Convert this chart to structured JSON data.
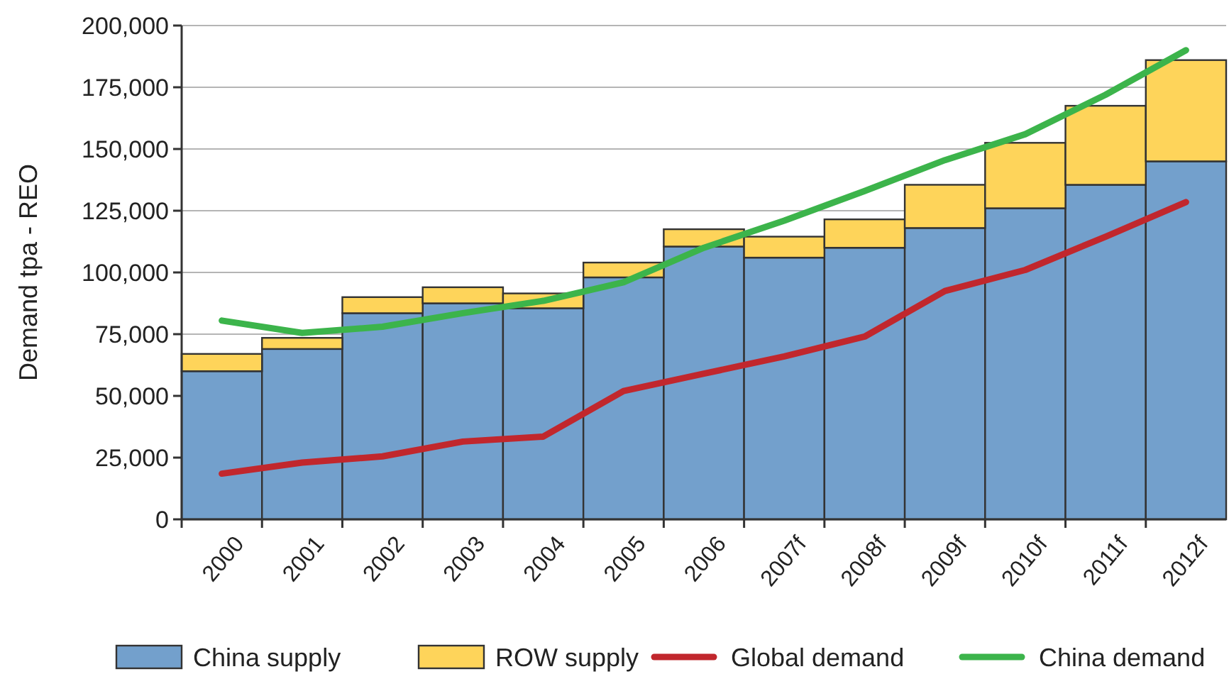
{
  "chart_data": {
    "type": "bar",
    "stacked": true,
    "ylabel": "Demand tpa - REO",
    "categories": [
      "2000",
      "2001",
      "2002",
      "2003",
      "2004",
      "2005",
      "2006",
      "2007f",
      "2008f",
      "2009f",
      "2010f",
      "2011f",
      "2012f"
    ],
    "series": [
      {
        "name": "China supply",
        "color": "#73a0cc",
        "values": [
          60000,
          69000,
          83500,
          87500,
          85500,
          98000,
          110500,
          106000,
          110000,
          118000,
          126000,
          135500,
          145000
        ]
      },
      {
        "name": "ROW supply",
        "color": "#fed45a",
        "values": [
          7000,
          4500,
          6500,
          6500,
          6000,
          6000,
          7000,
          8500,
          11500,
          17500,
          26500,
          32000,
          41000
        ]
      },
      {
        "name": "Global demand",
        "type": "line",
        "color": "#c1272d",
        "values": [
          18500,
          23000,
          25500,
          31500,
          33500,
          52000,
          59000,
          66000,
          74000,
          92500,
          101000,
          114500,
          128500
        ]
      },
      {
        "name": "China demand",
        "type": "line",
        "color": "#3cb44b",
        "values": [
          80500,
          75500,
          78000,
          83500,
          88500,
          96000,
          110000,
          121000,
          133000,
          145500,
          156000,
          172000,
          190000
        ]
      }
    ],
    "ylim": [
      0,
      200000
    ],
    "yticks": [
      {
        "value": 0,
        "label": "0"
      },
      {
        "value": 25000,
        "label": "25,000"
      },
      {
        "value": 50000,
        "label": "50,000"
      },
      {
        "value": 75000,
        "label": "75,000"
      },
      {
        "value": 100000,
        "label": "100,000"
      },
      {
        "value": 125000,
        "label": "125,000"
      },
      {
        "value": 150000,
        "label": "150,000"
      },
      {
        "value": 175000,
        "label": "175,000"
      },
      {
        "value": 200000,
        "label": "200,000"
      }
    ],
    "grid": "y",
    "legend": "bottom",
    "line_style": "solid",
    "marker": "none"
  }
}
